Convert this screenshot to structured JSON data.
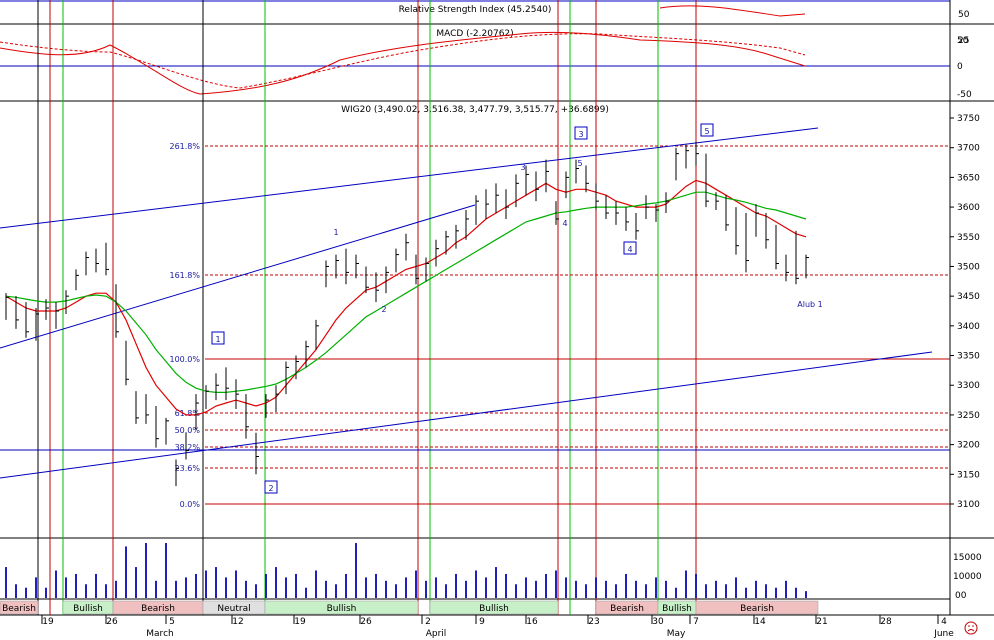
{
  "panels": {
    "rsi_title": "Relative Strength Index (45.2540)",
    "macd_title": "MACD (-2.20762)",
    "price_title": "WIG20 (3,490.02, 3,516.38, 3,477.79, 3,515.77, +36.6899)"
  },
  "rsi_axis": [
    "50",
    "25"
  ],
  "macd_axis": [
    "50",
    "0",
    "-50"
  ],
  "price_axis": [
    "3750",
    "3700",
    "3650",
    "3600",
    "3550",
    "3500",
    "3450",
    "3400",
    "3350",
    "3300",
    "3250",
    "3200",
    "3150",
    "3100"
  ],
  "volume_axis": [
    "15000",
    "10000"
  ],
  "volume_corner": "00",
  "date_ticks": [
    "19",
    "26",
    "5",
    "12",
    "19",
    "26",
    "2",
    "9",
    "16",
    "23",
    "30",
    "7",
    "14",
    "21",
    "28",
    "4"
  ],
  "month_labels": [
    "March",
    "April",
    "May",
    "June"
  ],
  "phase_labels": [
    "Bearish",
    "Bullish",
    "Bearish",
    "Neutral",
    "Bullish",
    "Bullish",
    "Bearish",
    "Bullish",
    "Bearish"
  ],
  "fibo_labels": [
    "261.8%",
    "161.8%",
    "100.0%",
    "61.8%",
    "50.0%",
    "38.2%",
    "23.6%",
    "0.0%"
  ],
  "wave_labels": {
    "boxed": [
      "1",
      "2",
      "3",
      "4",
      "5"
    ],
    "plain": [
      "1",
      "2",
      "3",
      "4",
      "5"
    ],
    "note": "Alub 1"
  },
  "colors": {
    "price_bar": "#000000",
    "ma_red": "#e00000",
    "ma_green": "#00b000",
    "trend_blue": "#0000c0",
    "fibo_red": "#c00000",
    "vline_green": "#00c000",
    "vline_red": "#c00000",
    "volume_bar": "#2020c0"
  },
  "chart_data": {
    "type": "ohlc",
    "ylim": [
      3080,
      3775
    ],
    "bars": [
      {
        "h": 3455,
        "l": 3410,
        "c": 3448
      },
      {
        "h": 3450,
        "l": 3395,
        "c": 3410
      },
      {
        "h": 3440,
        "l": 3380,
        "c": 3390
      },
      {
        "h": 3430,
        "l": 3375,
        "c": 3420
      },
      {
        "h": 3445,
        "l": 3410,
        "c": 3430
      },
      {
        "h": 3440,
        "l": 3395,
        "c": 3425
      },
      {
        "h": 3460,
        "l": 3420,
        "c": 3450
      },
      {
        "h": 3495,
        "l": 3460,
        "c": 3485
      },
      {
        "h": 3525,
        "l": 3485,
        "c": 3515
      },
      {
        "h": 3530,
        "l": 3490,
        "c": 3505
      },
      {
        "h": 3540,
        "l": 3485,
        "c": 3495
      },
      {
        "h": 3470,
        "l": 3380,
        "c": 3390
      },
      {
        "h": 3375,
        "l": 3300,
        "c": 3310
      },
      {
        "h": 3290,
        "l": 3235,
        "c": 3245
      },
      {
        "h": 3285,
        "l": 3235,
        "c": 3250
      },
      {
        "h": 3265,
        "l": 3195,
        "c": 3210
      },
      {
        "h": 3245,
        "l": 3200,
        "c": 3240
      },
      {
        "h": 3175,
        "l": 3130,
        "c": 3160
      },
      {
        "h": 3220,
        "l": 3175,
        "c": 3190
      },
      {
        "h": 3285,
        "l": 3225,
        "c": 3270
      },
      {
        "h": 3300,
        "l": 3260,
        "c": 3290
      },
      {
        "h": 3320,
        "l": 3275,
        "c": 3300
      },
      {
        "h": 3330,
        "l": 3275,
        "c": 3295
      },
      {
        "h": 3310,
        "l": 3260,
        "c": 3285
      },
      {
        "h": 3285,
        "l": 3210,
        "c": 3230
      },
      {
        "h": 3220,
        "l": 3150,
        "c": 3180
      },
      {
        "h": 3285,
        "l": 3245,
        "c": 3275
      },
      {
        "h": 3300,
        "l": 3255,
        "c": 3285
      },
      {
        "h": 3340,
        "l": 3285,
        "c": 3330
      },
      {
        "h": 3350,
        "l": 3310,
        "c": 3340
      },
      {
        "h": 3375,
        "l": 3330,
        "c": 3365
      },
      {
        "h": 3410,
        "l": 3360,
        "c": 3400
      },
      {
        "h": 3510,
        "l": 3465,
        "c": 3500
      },
      {
        "h": 3520,
        "l": 3480,
        "c": 3510
      },
      {
        "h": 3530,
        "l": 3470,
        "c": 3490
      },
      {
        "h": 3520,
        "l": 3480,
        "c": 3505
      },
      {
        "h": 3500,
        "l": 3455,
        "c": 3465
      },
      {
        "h": 3490,
        "l": 3440,
        "c": 3460
      },
      {
        "h": 3500,
        "l": 3455,
        "c": 3490
      },
      {
        "h": 3530,
        "l": 3490,
        "c": 3520
      },
      {
        "h": 3555,
        "l": 3510,
        "c": 3540
      },
      {
        "h": 3520,
        "l": 3470,
        "c": 3480
      },
      {
        "h": 3515,
        "l": 3475,
        "c": 3505
      },
      {
        "h": 3545,
        "l": 3500,
        "c": 3530
      },
      {
        "h": 3560,
        "l": 3520,
        "c": 3550
      },
      {
        "h": 3570,
        "l": 3530,
        "c": 3560
      },
      {
        "h": 3595,
        "l": 3545,
        "c": 3580
      },
      {
        "h": 3620,
        "l": 3570,
        "c": 3610
      },
      {
        "h": 3630,
        "l": 3580,
        "c": 3605
      },
      {
        "h": 3640,
        "l": 3590,
        "c": 3620
      },
      {
        "h": 3630,
        "l": 3580,
        "c": 3600
      },
      {
        "h": 3655,
        "l": 3600,
        "c": 3640
      },
      {
        "h": 3670,
        "l": 3620,
        "c": 3655
      },
      {
        "h": 3660,
        "l": 3610,
        "c": 3630
      },
      {
        "h": 3680,
        "l": 3625,
        "c": 3660
      },
      {
        "h": 3610,
        "l": 3570,
        "c": 3580
      },
      {
        "h": 3660,
        "l": 3615,
        "c": 3650
      },
      {
        "h": 3680,
        "l": 3640,
        "c": 3665
      },
      {
        "h": 3670,
        "l": 3625,
        "c": 3640
      },
      {
        "h": 3640,
        "l": 3595,
        "c": 3610
      },
      {
        "h": 3620,
        "l": 3580,
        "c": 3590
      },
      {
        "h": 3610,
        "l": 3570,
        "c": 3590
      },
      {
        "h": 3600,
        "l": 3560,
        "c": 3575
      },
      {
        "h": 3590,
        "l": 3545,
        "c": 3560
      },
      {
        "h": 3620,
        "l": 3580,
        "c": 3600
      },
      {
        "h": 3605,
        "l": 3575,
        "c": 3595
      },
      {
        "h": 3625,
        "l": 3590,
        "c": 3610
      },
      {
        "h": 3700,
        "l": 3645,
        "c": 3690
      },
      {
        "h": 3705,
        "l": 3665,
        "c": 3695
      },
      {
        "h": 3710,
        "l": 3670,
        "c": 3690
      },
      {
        "h": 3690,
        "l": 3600,
        "c": 3610
      },
      {
        "h": 3625,
        "l": 3595,
        "c": 3610
      },
      {
        "h": 3620,
        "l": 3560,
        "c": 3570
      },
      {
        "h": 3600,
        "l": 3520,
        "c": 3535
      },
      {
        "h": 3590,
        "l": 3490,
        "c": 3510
      },
      {
        "h": 3605,
        "l": 3550,
        "c": 3590
      },
      {
        "h": 3590,
        "l": 3530,
        "c": 3545
      },
      {
        "h": 3570,
        "l": 3495,
        "c": 3505
      },
      {
        "h": 3520,
        "l": 3475,
        "c": 3490
      },
      {
        "h": 3560,
        "l": 3470,
        "c": 3480
      },
      {
        "h": 3520,
        "l": 3480,
        "c": 3515
      }
    ],
    "ma_red": [
      3450,
      3440,
      3430,
      3425,
      3425,
      3425,
      3430,
      3440,
      3450,
      3455,
      3455,
      3440,
      3410,
      3370,
      3330,
      3300,
      3280,
      3260,
      3250,
      3250,
      3255,
      3265,
      3270,
      3275,
      3270,
      3265,
      3270,
      3280,
      3300,
      3320,
      3340,
      3360,
      3385,
      3410,
      3430,
      3445,
      3460,
      3465,
      3475,
      3485,
      3495,
      3500,
      3505,
      3515,
      3525,
      3540,
      3550,
      3565,
      3580,
      3590,
      3600,
      3610,
      3620,
      3630,
      3640,
      3630,
      3625,
      3630,
      3630,
      3625,
      3620,
      3610,
      3605,
      3600,
      3600,
      3600,
      3605,
      3620,
      3635,
      3645,
      3640,
      3630,
      3620,
      3610,
      3600,
      3590,
      3585,
      3575,
      3565,
      3555,
      3550
    ],
    "ma_green": [
      3450,
      3448,
      3445,
      3442,
      3440,
      3440,
      3442,
      3446,
      3450,
      3452,
      3450,
      3440,
      3425,
      3405,
      3385,
      3360,
      3340,
      3320,
      3305,
      3295,
      3290,
      3288,
      3288,
      3290,
      3292,
      3295,
      3298,
      3302,
      3310,
      3320,
      3330,
      3342,
      3355,
      3370,
      3385,
      3400,
      3415,
      3425,
      3435,
      3445,
      3455,
      3465,
      3475,
      3485,
      3495,
      3505,
      3515,
      3525,
      3535,
      3545,
      3555,
      3565,
      3575,
      3580,
      3585,
      3590,
      3592,
      3595,
      3598,
      3600,
      3600,
      3600,
      3600,
      3602,
      3605,
      3607,
      3610,
      3615,
      3620,
      3625,
      3625,
      3620,
      3615,
      3612,
      3608,
      3603,
      3598,
      3595,
      3590,
      3585,
      3580
    ],
    "volume": [
      9000,
      4000,
      3000,
      6000,
      3000,
      8000,
      6000,
      7000,
      4000,
      7000,
      4000,
      5000,
      15000,
      9000,
      16000,
      5000,
      16000,
      5000,
      6000,
      7000,
      8000,
      9000,
      6000,
      8000,
      5000,
      4000,
      7000,
      9000,
      6000,
      7000,
      3000,
      8000,
      5000,
      4000,
      7000,
      16000,
      6000,
      7000,
      5000,
      4000,
      6000,
      8000,
      5000,
      6000,
      4000,
      7000,
      5000,
      8000,
      6000,
      9000,
      7000,
      4000,
      6000,
      5000,
      7000,
      8000,
      6000,
      5000,
      4000,
      6000,
      5000,
      4000,
      7000,
      5000,
      4000,
      6000,
      5000,
      3000,
      8000,
      7000,
      4000,
      5000,
      4000,
      6000,
      3000,
      5000,
      4000,
      3000,
      5000,
      3000,
      2000
    ]
  }
}
